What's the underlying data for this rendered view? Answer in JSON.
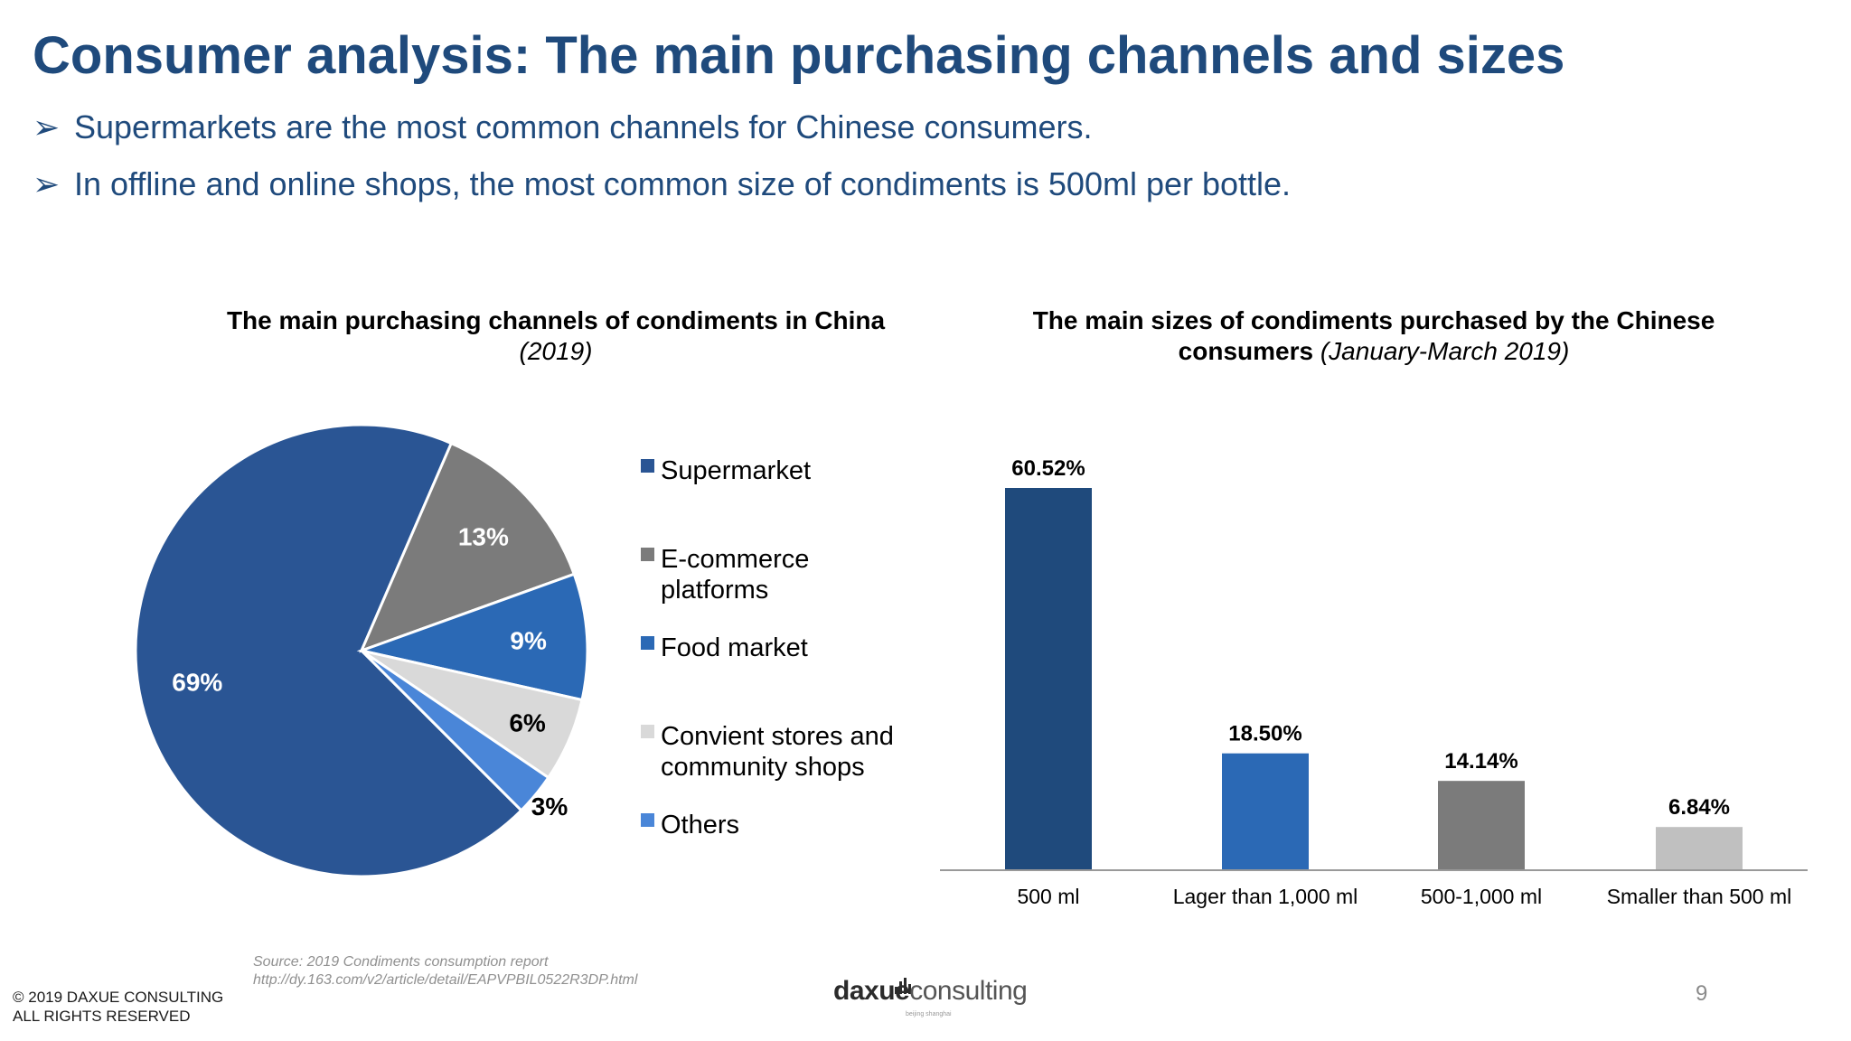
{
  "slide": {
    "title": "Consumer analysis: The main purchasing channels and sizes",
    "bullet_mark": "➢",
    "bullets": [
      "Supermarkets are the most common channels for Chinese consumers.",
      "In offline and online shops, the most common size of condiments is 500ml per bottle."
    ],
    "source_line1": "Source: 2019 Condiments consumption report",
    "source_line2": "http://dy.163.com/v2/article/detail/EAPVPBIL0522R3DP.html",
    "copyright_line1": "© 2019 DAXUE CONSULTING",
    "copyright_line2": "ALL RIGHTS RESERVED",
    "logo_part1": "daxue",
    "logo_part2": "consulting",
    "logo_sub": "beijing shanghai",
    "page_number": "9"
  },
  "chart_data": [
    {
      "type": "pie",
      "title": "The main purchasing channels of condiments in China",
      "subtitle": "(2019)",
      "legend_position": "right",
      "categories": [
        "Supermarket",
        "E-commerce platforms",
        "Food market",
        "Convient stores and community shops",
        "Others"
      ],
      "legend_lines": [
        [
          "Supermarket"
        ],
        [
          "E-commerce",
          "platforms"
        ],
        [
          "Food market"
        ],
        [
          "Convient stores and",
          "community shops"
        ],
        [
          "Others"
        ]
      ],
      "values": [
        69,
        13,
        9,
        6,
        3
      ],
      "labels": [
        "69%",
        "13%",
        "9%",
        "6%",
        "3%"
      ],
      "colors": [
        "#2a5594",
        "#7b7b7b",
        "#2b69b5",
        "#d9d9d9",
        "#4a86d8"
      ],
      "label_colors": [
        "#ffffff",
        "#ffffff",
        "#ffffff",
        "#000000",
        "#000000"
      ]
    },
    {
      "type": "bar",
      "title": "The main sizes of condiments purchased by the Chinese consumers",
      "subtitle": "(January-March 2019)",
      "categories": [
        "500 ml",
        "Lager than 1,000 ml",
        "500-1,000 ml",
        "Smaller than 500 ml"
      ],
      "values": [
        60.52,
        18.5,
        14.14,
        6.84
      ],
      "labels": [
        "60.52%",
        "18.50%",
        "14.14%",
        "6.84%"
      ],
      "colors": [
        "#1f4a7c",
        "#2b69b5",
        "#7b7b7b",
        "#c0c0c0"
      ],
      "ylim": [
        0,
        60.52
      ],
      "grid": false
    }
  ]
}
